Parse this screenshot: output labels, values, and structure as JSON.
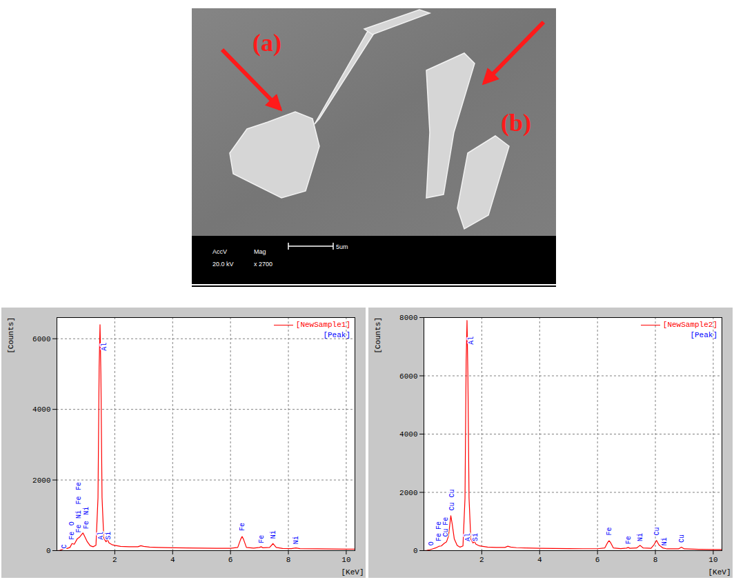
{
  "micrograph": {
    "labels": [
      "(a)",
      "(b)"
    ],
    "databar": [
      {
        "head": "AccV",
        "value": "20.0 kV"
      },
      {
        "head": "Mag",
        "value": "x 2700"
      }
    ],
    "scale_bar": "5um"
  },
  "chart_data": [
    {
      "type": "line",
      "x_label": "[KeV]",
      "y_label": "[Counts]",
      "x": [
        0,
        0.1,
        0.2,
        0.28,
        0.35,
        0.45,
        0.52,
        0.6,
        0.7,
        0.78,
        0.85,
        0.9,
        0.95,
        1.05,
        1.15,
        1.25,
        1.35,
        1.42,
        1.46,
        1.49,
        1.52,
        1.56,
        1.62,
        1.7,
        1.74,
        1.8,
        1.9,
        2.0,
        2.2,
        2.5,
        2.8,
        2.9,
        3.0,
        3.2,
        3.5,
        4.0,
        4.5,
        5.0,
        5.5,
        6.0,
        6.25,
        6.35,
        6.4,
        6.45,
        6.55,
        6.8,
        7.0,
        7.06,
        7.12,
        7.35,
        7.47,
        7.58,
        7.8,
        8.1,
        8.26,
        8.4,
        9.0,
        9.5,
        10.0,
        10.3
      ],
      "series": [
        {
          "name": "[NewSample1]",
          "color": "#ff0000",
          "values": [
            0,
            10,
            40,
            80,
            60,
            90,
            200,
            180,
            330,
            380,
            450,
            500,
            420,
            250,
            140,
            110,
            150,
            1500,
            5200,
            6400,
            5000,
            1500,
            350,
            250,
            320,
            220,
            170,
            150,
            120,
            110,
            110,
            140,
            120,
            100,
            90,
            80,
            75,
            70,
            65,
            65,
            90,
            320,
            400,
            320,
            90,
            70,
            90,
            110,
            80,
            90,
            200,
            90,
            60,
            55,
            75,
            55,
            50,
            45,
            40,
            40
          ]
        }
      ],
      "xlim": [
        0,
        10.3
      ],
      "xticks": [
        2,
        4,
        6,
        8,
        10
      ],
      "ylim": [
        0,
        6600
      ],
      "yticks": [
        0,
        2000,
        4000,
        6000
      ],
      "grid": true,
      "legend": "top-right",
      "peaks": {
        "name": "[Peak]",
        "color": "#0000ff",
        "labels": [
          {
            "label": "C",
            "x": 0.25,
            "y": 0
          },
          {
            "label": "Fe",
            "x": 0.5,
            "y": 250
          },
          {
            "label": "O",
            "x": 0.5,
            "y": 650
          },
          {
            "label": "Fe",
            "x": 0.75,
            "y": 450
          },
          {
            "label": "Ni",
            "x": 0.75,
            "y": 850
          },
          {
            "label": "Fe",
            "x": 0.75,
            "y": 1250
          },
          {
            "label": "Fe",
            "x": 0.75,
            "y": 1650
          },
          {
            "label": "Fe",
            "x": 1.0,
            "y": 550
          },
          {
            "label": "Ni",
            "x": 1.0,
            "y": 950
          },
          {
            "label": "Al",
            "x": 1.62,
            "y": 5600
          },
          {
            "label": "Al",
            "x": 1.52,
            "y": 250
          },
          {
            "label": "Si",
            "x": 1.78,
            "y": 250
          },
          {
            "label": "Fe",
            "x": 6.4,
            "y": 500
          },
          {
            "label": "Fe",
            "x": 7.06,
            "y": 150
          },
          {
            "label": "Ni",
            "x": 7.47,
            "y": 280
          },
          {
            "label": "Ni",
            "x": 8.26,
            "y": 120
          }
        ]
      }
    },
    {
      "type": "line",
      "x_label": "[KeV]",
      "y_label": "[Counts]",
      "x": [
        0,
        0.1,
        0.2,
        0.3,
        0.4,
        0.52,
        0.6,
        0.7,
        0.78,
        0.85,
        0.93,
        0.98,
        1.05,
        1.15,
        1.25,
        1.35,
        1.42,
        1.46,
        1.49,
        1.52,
        1.56,
        1.62,
        1.7,
        1.74,
        1.8,
        1.9,
        2.0,
        2.2,
        2.5,
        2.8,
        2.9,
        3.0,
        3.2,
        3.5,
        4.0,
        4.5,
        5.0,
        5.5,
        6.0,
        6.25,
        6.35,
        6.4,
        6.45,
        6.55,
        6.8,
        7.0,
        7.06,
        7.12,
        7.35,
        7.47,
        7.58,
        7.85,
        7.95,
        8.04,
        8.12,
        8.26,
        8.4,
        8.8,
        8.9,
        9.0,
        9.5,
        10.0,
        10.3
      ],
      "series": [
        {
          "name": "[NewSample2]",
          "color": "#ff0000",
          "values": [
            0,
            10,
            30,
            60,
            90,
            150,
            160,
            250,
            300,
            500,
            1200,
            900,
            400,
            180,
            120,
            160,
            1800,
            6500,
            7900,
            6000,
            1800,
            400,
            260,
            320,
            220,
            170,
            150,
            120,
            110,
            110,
            150,
            120,
            100,
            90,
            80,
            75,
            70,
            65,
            65,
            90,
            280,
            340,
            280,
            90,
            70,
            85,
            110,
            80,
            90,
            180,
            90,
            80,
            200,
            350,
            200,
            90,
            60,
            60,
            120,
            60,
            45,
            40,
            40
          ]
        }
      ],
      "xlim": [
        0,
        10.3
      ],
      "xticks": [
        2,
        4,
        6,
        8,
        10
      ],
      "ylim": [
        0,
        8000
      ],
      "yticks": [
        0,
        2000,
        4000,
        6000,
        8000
      ],
      "grid": true,
      "legend": "top-right",
      "peaks": {
        "name": "[Peak]",
        "color": "#0000ff",
        "labels": [
          {
            "label": "O",
            "x": 0.25,
            "y": 100
          },
          {
            "label": "Fe",
            "x": 0.5,
            "y": 250
          },
          {
            "label": "Fe",
            "x": 0.5,
            "y": 650
          },
          {
            "label": "Cu",
            "x": 0.75,
            "y": 400
          },
          {
            "label": "Fe",
            "x": 0.75,
            "y": 800
          },
          {
            "label": "Cu",
            "x": 0.97,
            "y": 1300
          },
          {
            "label": "Cu",
            "x": 0.97,
            "y": 1750
          },
          {
            "label": "Al",
            "x": 1.62,
            "y": 7000
          },
          {
            "label": "Al",
            "x": 1.52,
            "y": 250
          },
          {
            "label": "Si",
            "x": 1.78,
            "y": 250
          },
          {
            "label": "Fe",
            "x": 6.4,
            "y": 450
          },
          {
            "label": "Fe",
            "x": 7.06,
            "y": 150
          },
          {
            "label": "Ni",
            "x": 7.47,
            "y": 250
          },
          {
            "label": "Cu",
            "x": 8.04,
            "y": 450
          },
          {
            "label": "Ni",
            "x": 8.3,
            "y": 100
          },
          {
            "label": "Cu",
            "x": 8.9,
            "y": 200
          }
        ]
      }
    }
  ]
}
